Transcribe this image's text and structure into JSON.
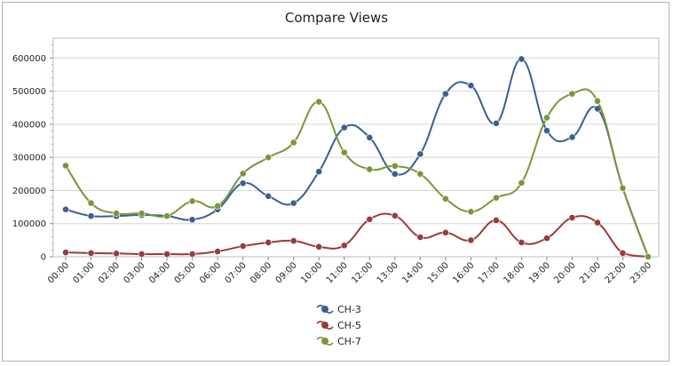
{
  "chart_data": {
    "type": "line",
    "title": "Compare Views",
    "xlabel": "",
    "ylabel": "",
    "categories": [
      "00:00",
      "01:00",
      "02:00",
      "03:00",
      "04:00",
      "05:00",
      "06:00",
      "07:00",
      "08:00",
      "09:00",
      "10:00",
      "11:00",
      "12:00",
      "13:00",
      "14:00",
      "15:00",
      "16:00",
      "17:00",
      "18:00",
      "19:00",
      "20:00",
      "21:00",
      "22:00",
      "23:00"
    ],
    "ylim": [
      0,
      660000
    ],
    "yticks": [
      "0",
      "100000",
      "200000",
      "300000",
      "400000",
      "500000",
      "600000"
    ],
    "grid": true,
    "legend_placement": "bottom-center",
    "series": [
      {
        "name": "CH-3",
        "color": "#3a5f92",
        "values": [
          143000,
          123000,
          123000,
          126000,
          123000,
          112000,
          143000,
          222000,
          183000,
          162000,
          257000,
          390000,
          360000,
          250000,
          310000,
          492000,
          517000,
          403000,
          597000,
          381000,
          361000,
          447000,
          207000,
          0
        ]
      },
      {
        "name": "CH-5",
        "color": "#9a3b37",
        "values": [
          13000,
          11000,
          10000,
          8000,
          8000,
          8000,
          16000,
          32000,
          43000,
          48000,
          30000,
          34000,
          113000,
          124000,
          59000,
          73000,
          50000,
          110000,
          43000,
          56000,
          118000,
          103000,
          11000,
          0
        ]
      },
      {
        "name": "CH-7",
        "color": "#7b9539",
        "values": [
          275000,
          162000,
          131000,
          131000,
          123000,
          168000,
          153000,
          251000,
          300000,
          345000,
          468000,
          315000,
          264000,
          274000,
          250000,
          175000,
          136000,
          178000,
          223000,
          420000,
          492000,
          470000,
          207000,
          0
        ]
      }
    ]
  }
}
